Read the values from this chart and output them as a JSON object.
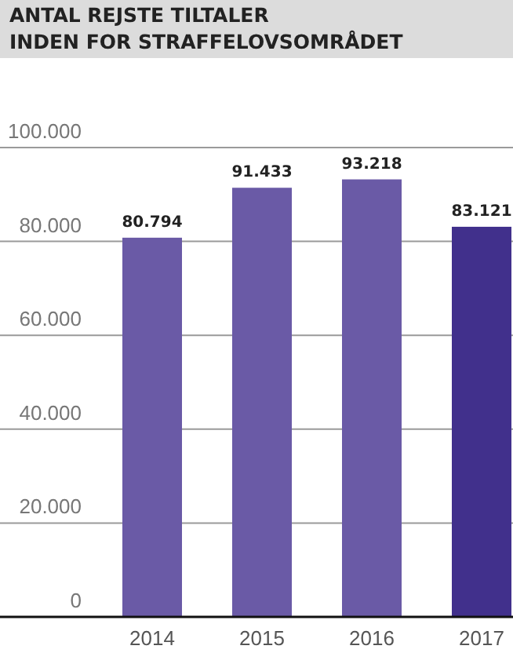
{
  "chart_data": {
    "type": "bar",
    "title": "ANTAL REJSTE TILTALER\nINDEN FOR STRAFFELOVSOMRÅDET",
    "categories": [
      "2014",
      "2015",
      "2016",
      "2017"
    ],
    "values": [
      80794,
      91433,
      93218,
      83121
    ],
    "value_labels": [
      "80.794",
      "91.433",
      "93.218",
      "83.121"
    ],
    "colors": [
      "#6a5aa6",
      "#6a5aa6",
      "#6a5aa6",
      "#41308c"
    ],
    "ylim": [
      0,
      100000
    ],
    "yticks": [
      {
        "value": 0,
        "label": "0"
      },
      {
        "value": 20000,
        "label": "20.000"
      },
      {
        "value": 40000,
        "label": "40.000"
      },
      {
        "value": 60000,
        "label": "60.000"
      },
      {
        "value": 80000,
        "label": "80.000"
      },
      {
        "value": 100000,
        "label": "100.000"
      }
    ],
    "grid": "y"
  }
}
